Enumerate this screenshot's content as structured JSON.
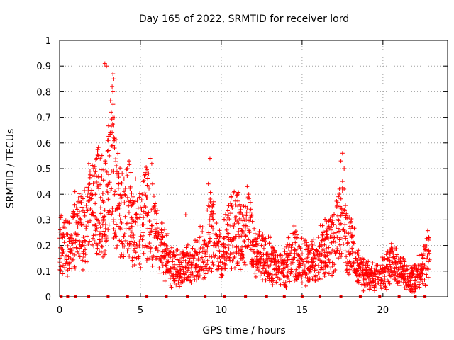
{
  "chart_data": {
    "type": "scatter",
    "title": "Day 165 of 2022, SRMTID for receiver lord",
    "xlabel": "GPS time / hours",
    "ylabel": "SRMTID / TECUs",
    "xlim": [
      0,
      24
    ],
    "ylim": [
      0,
      1
    ],
    "xticks": [
      0,
      5,
      10,
      15,
      20
    ],
    "xtick_labels": [
      "0",
      "5",
      "10",
      "15",
      "20"
    ],
    "yticks": [
      0,
      0.1,
      0.2,
      0.3,
      0.4,
      0.5,
      0.6,
      0.7,
      0.8,
      0.9,
      1
    ],
    "ytick_labels": [
      "0",
      "0.1",
      "0.2",
      "0.3",
      "0.4",
      "0.5",
      "0.6",
      "0.7",
      "0.8",
      "0.9",
      "1"
    ],
    "grid": true,
    "marker": "+",
    "color": "#ff0000",
    "zero_points_x": [
      0.1,
      0.5,
      1.0,
      1.8,
      3.0,
      4.2,
      5.4,
      6.6,
      7.9,
      9.0,
      10.2,
      11.5,
      12.8,
      13.9,
      15.0,
      16.1,
      17.4,
      18.6,
      19.8,
      21.0,
      22.0,
      22.6
    ],
    "envelope": [
      {
        "x": 0.0,
        "y": 0.2
      },
      {
        "x": 0.4,
        "y": 0.19
      },
      {
        "x": 0.8,
        "y": 0.22
      },
      {
        "x": 1.2,
        "y": 0.26
      },
      {
        "x": 1.6,
        "y": 0.27
      },
      {
        "x": 2.0,
        "y": 0.33
      },
      {
        "x": 2.4,
        "y": 0.38
      },
      {
        "x": 2.8,
        "y": 0.33
      },
      {
        "x": 3.0,
        "y": 0.42
      },
      {
        "x": 3.2,
        "y": 0.55
      },
      {
        "x": 3.4,
        "y": 0.45
      },
      {
        "x": 3.8,
        "y": 0.3
      },
      {
        "x": 4.2,
        "y": 0.36
      },
      {
        "x": 4.6,
        "y": 0.24
      },
      {
        "x": 5.0,
        "y": 0.28
      },
      {
        "x": 5.4,
        "y": 0.34
      },
      {
        "x": 5.8,
        "y": 0.27
      },
      {
        "x": 6.2,
        "y": 0.2
      },
      {
        "x": 6.6,
        "y": 0.15
      },
      {
        "x": 7.0,
        "y": 0.12
      },
      {
        "x": 7.5,
        "y": 0.11
      },
      {
        "x": 8.0,
        "y": 0.12
      },
      {
        "x": 8.5,
        "y": 0.14
      },
      {
        "x": 9.0,
        "y": 0.2
      },
      {
        "x": 9.3,
        "y": 0.28
      },
      {
        "x": 9.6,
        "y": 0.22
      },
      {
        "x": 10.0,
        "y": 0.15
      },
      {
        "x": 10.5,
        "y": 0.24
      },
      {
        "x": 10.9,
        "y": 0.3
      },
      {
        "x": 11.3,
        "y": 0.22
      },
      {
        "x": 11.7,
        "y": 0.26
      },
      {
        "x": 12.0,
        "y": 0.17
      },
      {
        "x": 12.5,
        "y": 0.15
      },
      {
        "x": 13.0,
        "y": 0.15
      },
      {
        "x": 13.5,
        "y": 0.11
      },
      {
        "x": 14.0,
        "y": 0.12
      },
      {
        "x": 14.5,
        "y": 0.17
      },
      {
        "x": 15.0,
        "y": 0.14
      },
      {
        "x": 15.5,
        "y": 0.13
      },
      {
        "x": 16.0,
        "y": 0.16
      },
      {
        "x": 16.5,
        "y": 0.2
      },
      {
        "x": 17.0,
        "y": 0.22
      },
      {
        "x": 17.4,
        "y": 0.3
      },
      {
        "x": 17.8,
        "y": 0.2
      },
      {
        "x": 18.2,
        "y": 0.18
      },
      {
        "x": 18.6,
        "y": 0.1
      },
      {
        "x": 19.0,
        "y": 0.08
      },
      {
        "x": 19.5,
        "y": 0.08
      },
      {
        "x": 20.0,
        "y": 0.1
      },
      {
        "x": 20.5,
        "y": 0.13
      },
      {
        "x": 21.0,
        "y": 0.1
      },
      {
        "x": 21.5,
        "y": 0.08
      },
      {
        "x": 22.0,
        "y": 0.07
      },
      {
        "x": 22.5,
        "y": 0.12
      },
      {
        "x": 22.9,
        "y": 0.18
      }
    ],
    "peaks": [
      {
        "x": 2.8,
        "y": 0.91
      },
      {
        "x": 2.9,
        "y": 0.9
      },
      {
        "x": 3.3,
        "y": 0.87
      },
      {
        "x": 3.35,
        "y": 0.85
      },
      {
        "x": 3.25,
        "y": 0.82
      },
      {
        "x": 3.3,
        "y": 0.8
      },
      {
        "x": 3.2,
        "y": 0.72
      },
      {
        "x": 3.3,
        "y": 0.7
      },
      {
        "x": 3.35,
        "y": 0.67
      },
      {
        "x": 3.25,
        "y": 0.64
      },
      {
        "x": 3.3,
        "y": 0.59
      },
      {
        "x": 3.4,
        "y": 0.58
      },
      {
        "x": 1.8,
        "y": 0.52
      },
      {
        "x": 2.3,
        "y": 0.54
      },
      {
        "x": 2.1,
        "y": 0.5
      },
      {
        "x": 4.3,
        "y": 0.53
      },
      {
        "x": 4.2,
        "y": 0.5
      },
      {
        "x": 5.6,
        "y": 0.54
      },
      {
        "x": 5.7,
        "y": 0.52
      },
      {
        "x": 5.5,
        "y": 0.48
      },
      {
        "x": 9.3,
        "y": 0.54
      },
      {
        "x": 9.2,
        "y": 0.44
      },
      {
        "x": 10.8,
        "y": 0.41
      },
      {
        "x": 11.0,
        "y": 0.4
      },
      {
        "x": 11.6,
        "y": 0.43
      },
      {
        "x": 11.7,
        "y": 0.4
      },
      {
        "x": 17.5,
        "y": 0.56
      },
      {
        "x": 17.4,
        "y": 0.53
      },
      {
        "x": 17.6,
        "y": 0.5
      },
      {
        "x": 17.5,
        "y": 0.45
      },
      {
        "x": 17.6,
        "y": 0.42
      },
      {
        "x": 0.95,
        "y": 0.41
      },
      {
        "x": 2.6,
        "y": 0.46
      },
      {
        "x": 4.7,
        "y": 0.46
      },
      {
        "x": 7.8,
        "y": 0.32
      },
      {
        "x": 9.5,
        "y": 0.36
      }
    ]
  }
}
